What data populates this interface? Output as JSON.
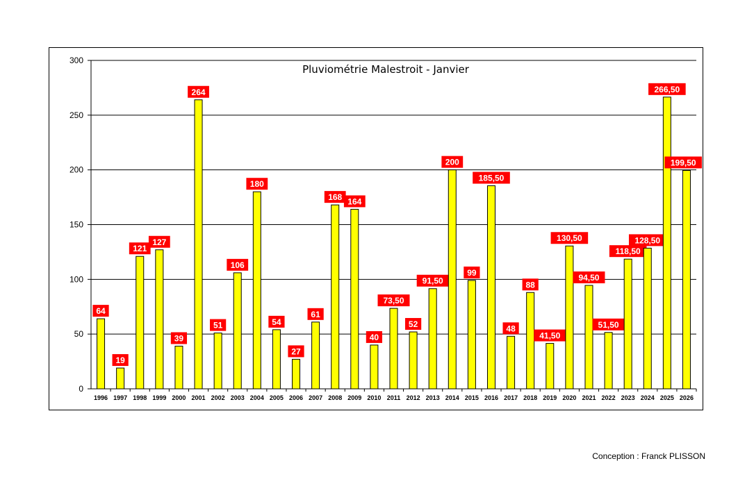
{
  "chart_data": {
    "type": "bar",
    "title": "Pluviométrie Malestroit - Janvier",
    "xlabel": "",
    "ylabel": "",
    "ylim": [
      0,
      300
    ],
    "yticks": [
      0,
      50,
      100,
      150,
      200,
      250,
      300
    ],
    "grid": true,
    "categories": [
      "1996",
      "1997",
      "1998",
      "1999",
      "2000",
      "2001",
      "2002",
      "2003",
      "2004",
      "2005",
      "2006",
      "2007",
      "2008",
      "2009",
      "2010",
      "2011",
      "2012",
      "2013",
      "2014",
      "2015",
      "2016",
      "2017",
      "2018",
      "2019",
      "2020",
      "2021",
      "2022",
      "2023",
      "2024",
      "2025",
      "2026"
    ],
    "values": [
      64,
      19,
      121,
      127,
      39,
      264,
      51,
      106,
      180,
      54,
      27,
      61,
      168,
      164,
      40,
      73.5,
      52,
      91.5,
      200,
      99,
      185.5,
      48,
      88,
      41.5,
      130.5,
      94.5,
      51.5,
      118.5,
      128.5,
      266.5,
      199.5
    ],
    "data_labels": [
      "64",
      "19",
      "121",
      "127",
      "39",
      "264",
      "51",
      "106",
      "180",
      "54",
      "27",
      "61",
      "168",
      "164",
      "40",
      "73,50",
      "52",
      "91,50",
      "200",
      "99",
      "185,50",
      "48",
      "88",
      "41,50",
      "130,50",
      "94,50",
      "51,50",
      "118,50",
      "128,50",
      "266,50",
      "199,50"
    ],
    "colors": {
      "bar": "#ffff00",
      "bar_stroke": "#000000",
      "label_bg": "#ff0000",
      "label_text": "#ffffff",
      "grid": "#000000"
    }
  },
  "footer": {
    "credit": "Conception : Franck PLISSON"
  }
}
